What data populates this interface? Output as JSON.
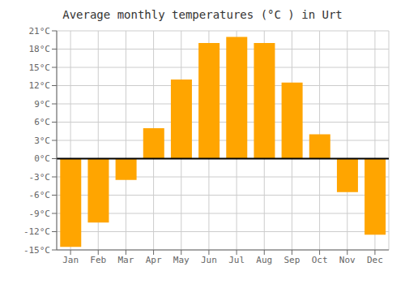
{
  "chart_data": {
    "type": "bar",
    "title": "Average monthly temperatures (°C ) in Urt",
    "categories": [
      "Jan",
      "Feb",
      "Mar",
      "Apr",
      "May",
      "Jun",
      "Jul",
      "Aug",
      "Sep",
      "Oct",
      "Nov",
      "Dec"
    ],
    "values": [
      -14.5,
      -10.5,
      -3.5,
      5,
      13,
      19,
      20,
      19,
      12.5,
      4,
      -5.5,
      -12.5
    ],
    "color": "#FFA500",
    "ylim": [
      -15,
      21
    ],
    "yticks": [
      {
        "value": -15,
        "label": "-15°C"
      },
      {
        "value": -12,
        "label": "-12°C"
      },
      {
        "value": -9,
        "label": "-9°C"
      },
      {
        "value": -6,
        "label": "-6°C"
      },
      {
        "value": -3,
        "label": "-3°C"
      },
      {
        "value": 0,
        "label": "0°C"
      },
      {
        "value": 3,
        "label": "3°C"
      },
      {
        "value": 6,
        "label": "6°C"
      },
      {
        "value": 9,
        "label": "9°C"
      },
      {
        "value": 12,
        "label": "12°C"
      },
      {
        "value": 15,
        "label": "15°C"
      },
      {
        "value": 18,
        "label": "18°C"
      },
      {
        "value": 21,
        "label": "21°C"
      }
    ],
    "grid": true
  }
}
